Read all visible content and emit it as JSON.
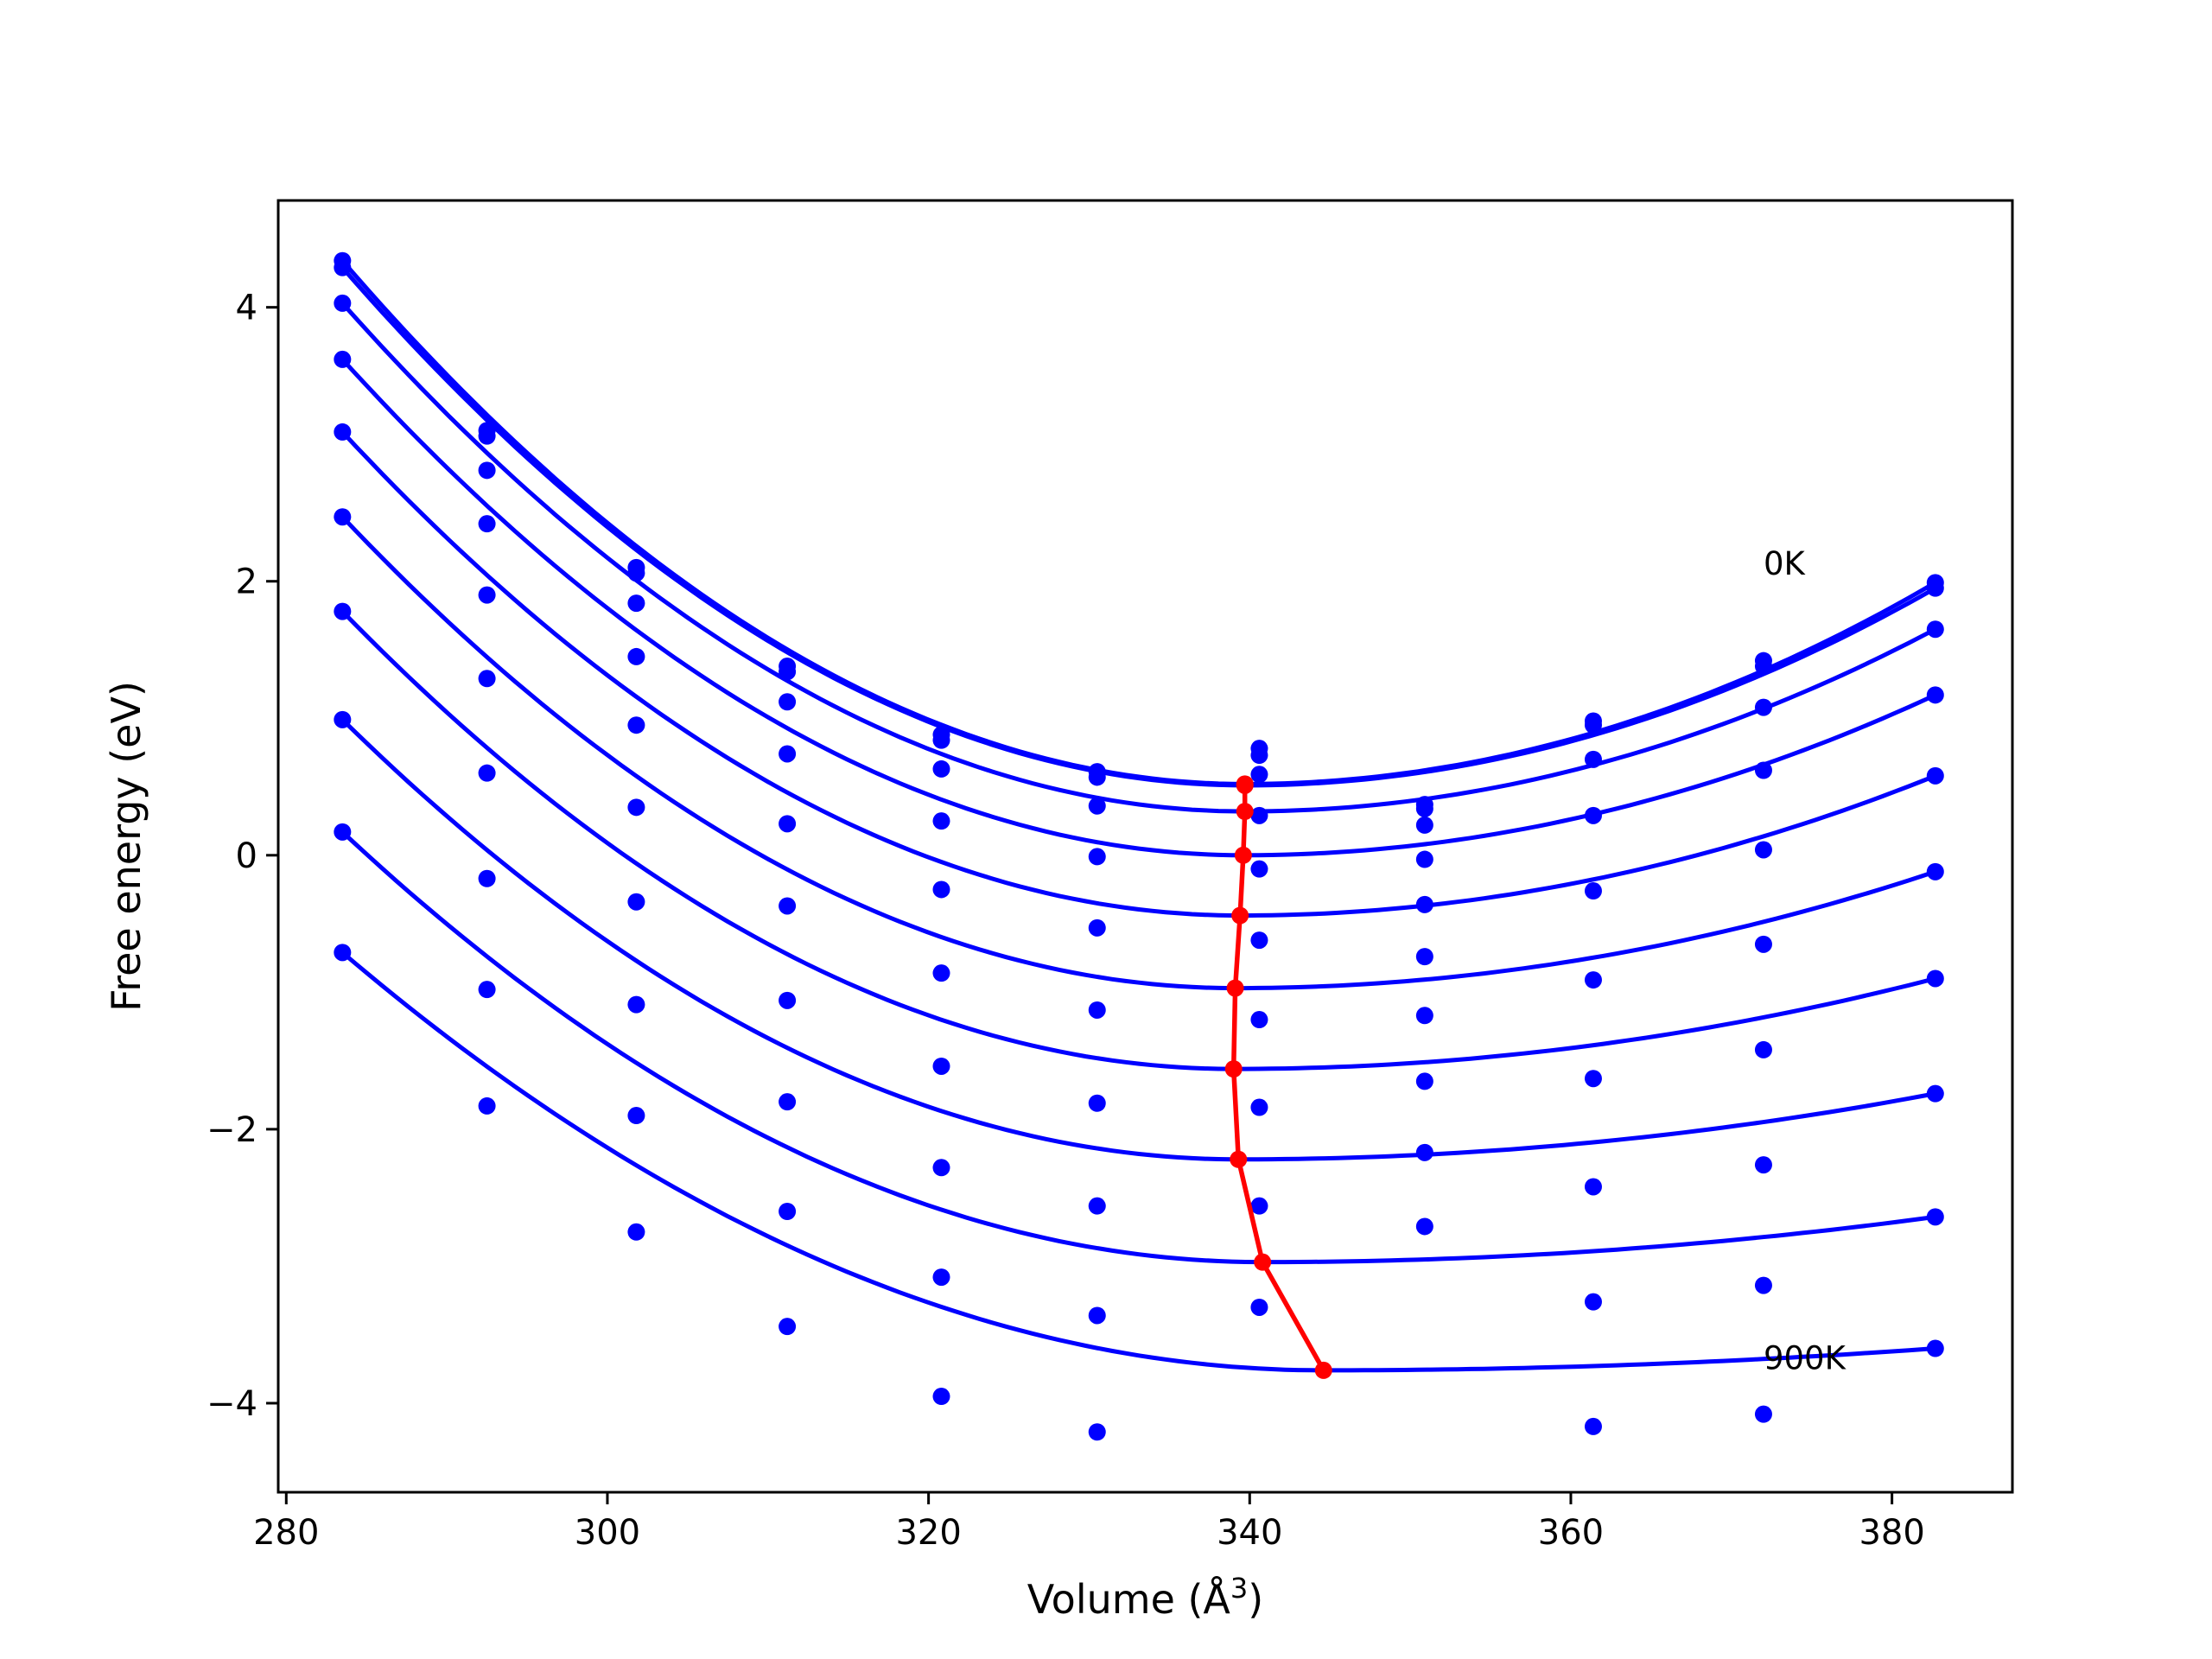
{
  "chart_data": {
    "type": "scatter",
    "title": "",
    "xlabel": "Volume (Å",
    "xlabel_exponent": "3",
    "xlabel_close": ")",
    "ylabel": "Free energy (eV)",
    "xlim": [
      279.5,
      387.5
    ],
    "ylim": [
      -4.65,
      4.78
    ],
    "x_ticks": [
      280,
      300,
      320,
      340,
      360,
      380
    ],
    "y_ticks": [
      -4,
      -2,
      0,
      2,
      4
    ],
    "y_tick_labels": [
      "−4",
      "−2",
      "0",
      "2",
      "4"
    ],
    "grid": false,
    "legend": "none",
    "annotations": [
      {
        "text": "0K",
        "x": 372,
        "y": 2.05
      },
      {
        "text": "900K",
        "x": 372,
        "y": -3.75
      }
    ],
    "colors": {
      "data": "#0000ff",
      "minimum_path": "#ff0000"
    },
    "volumes": [
      283.5,
      292.5,
      301.8,
      311.2,
      320.8,
      330.5,
      340.6,
      350.9,
      361.4,
      372.0,
      382.7
    ],
    "isotherms": [
      {
        "points": [
          4.34,
          3.1,
          2.1,
          1.38,
          0.88,
          0.61,
          0.78,
          0.37,
          0.98,
          1.42,
          1.99
        ],
        "fit_min": {
          "v": 339.7,
          "f": 0.52
        }
      },
      {
        "points": [
          4.29,
          3.06,
          2.06,
          1.34,
          0.84,
          0.57,
          0.73,
          0.34,
          0.95,
          1.38,
          1.95
        ],
        "fit_min": {
          "v": 339.7,
          "f": 0.51
        }
      },
      {
        "points": [
          4.03,
          2.81,
          1.84,
          1.12,
          0.63,
          0.36,
          0.59,
          0.22,
          0.7,
          1.08,
          1.65
        ],
        "fit_min": {
          "v": 339.7,
          "f": 0.32
        }
      },
      {
        "points": [
          3.62,
          2.42,
          1.45,
          0.74,
          0.25,
          -0.01,
          0.29,
          -0.03,
          0.29,
          0.62,
          1.17
        ],
        "fit_min": {
          "v": 339.6,
          "f": 0.0
        }
      },
      {
        "points": [
          3.09,
          1.9,
          0.95,
          0.23,
          -0.25,
          -0.53,
          -0.1,
          -0.36,
          -0.26,
          0.04,
          0.58
        ],
        "fit_min": {
          "v": 339.4,
          "f": -0.44
        }
      },
      {
        "points": [
          2.47,
          1.29,
          0.35,
          -0.37,
          -0.86,
          -1.13,
          -0.62,
          -0.74,
          -0.91,
          -0.65,
          -0.12
        ],
        "fit_min": {
          "v": 339.1,
          "f": -0.97
        }
      },
      {
        "points": [
          1.78,
          0.6,
          -0.34,
          -1.06,
          -1.54,
          -1.81,
          -1.2,
          -1.17,
          -1.63,
          -1.42,
          -0.9
        ],
        "fit_min": {
          "v": 339.0,
          "f": -1.56
        }
      },
      {
        "points": [
          0.99,
          -0.17,
          -1.09,
          -1.8,
          -2.28,
          -2.56,
          -1.84,
          -1.65,
          -2.42,
          -2.26,
          -1.74
        ],
        "fit_min": {
          "v": 339.3,
          "f": -2.22
        }
      },
      {
        "points": [
          0.17,
          -0.98,
          -1.9,
          -2.6,
          -3.08,
          -3.36,
          -2.56,
          -2.17,
          -3.26,
          -3.14,
          -2.64
        ],
        "fit_min": {
          "v": 340.8,
          "f": -2.97
        }
      },
      {
        "points": [
          -0.71,
          -1.83,
          -2.75,
          -3.44,
          -3.95,
          -4.21,
          -3.3,
          -2.71,
          -4.17,
          -4.08,
          -3.6
        ],
        "fit_min": {
          "v": 344.6,
          "f": -3.76
        }
      }
    ]
  }
}
